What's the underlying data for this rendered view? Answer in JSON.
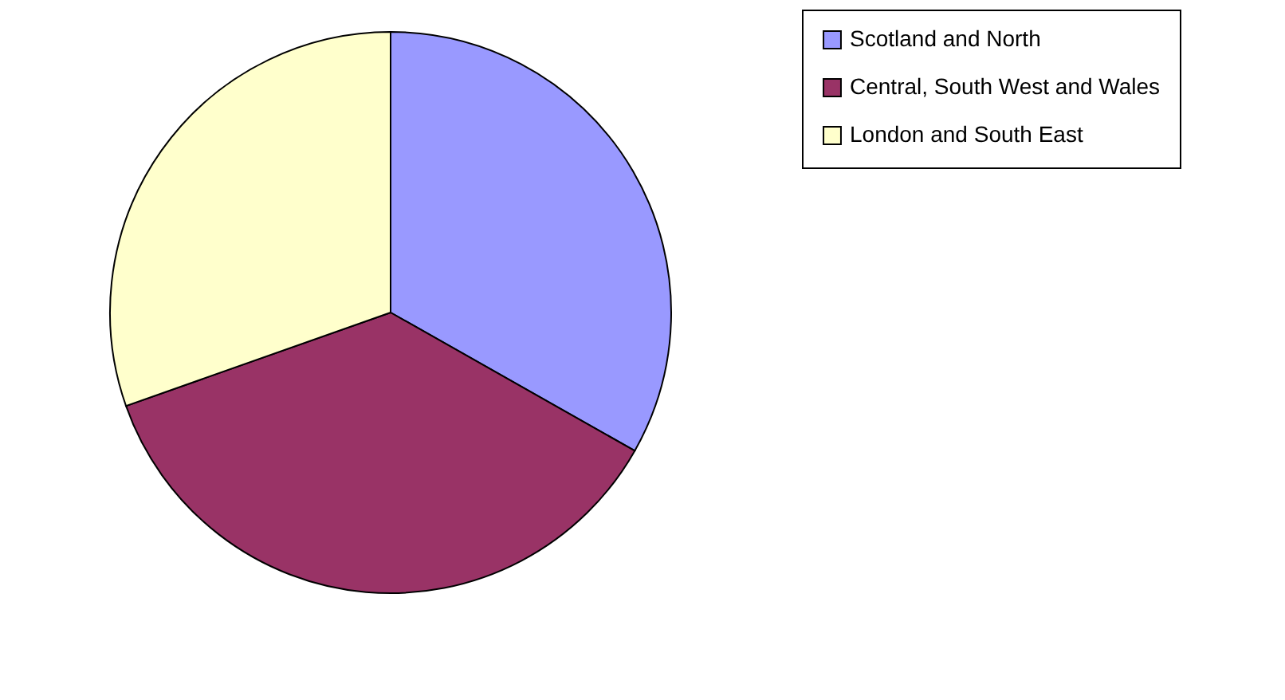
{
  "chart_data": {
    "type": "pie",
    "categories": [
      "Scotland and North",
      "Central, South West and Wales",
      "London and South East"
    ],
    "values": [
      33.2,
      36.4,
      30.4
    ],
    "colors": [
      "#9999ff",
      "#993366",
      "#ffffcc"
    ],
    "legend": "right"
  }
}
